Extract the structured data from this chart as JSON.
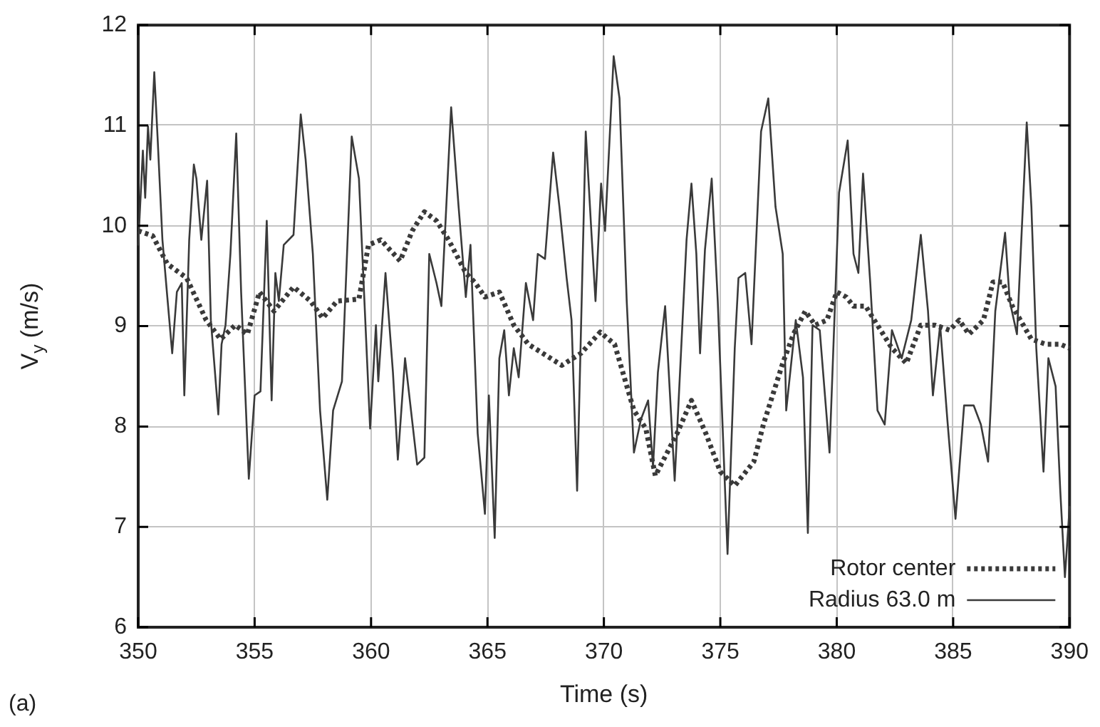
{
  "chart_data": {
    "type": "line",
    "xlabel": "Time (s)",
    "ylabel": "V$_{y}$ (m/s)",
    "xlim": [
      350,
      390
    ],
    "xticks": [
      350,
      355,
      360,
      365,
      370,
      375,
      380,
      385,
      390
    ],
    "ylim": [
      6,
      12
    ],
    "yticks": [
      6,
      7,
      8,
      9,
      10,
      11,
      12
    ],
    "grid": true,
    "legend": "bottom right",
    "marker": "none",
    "annotations": [
      "(a)"
    ],
    "series": [
      {
        "name": "Rotor center",
        "color": "#3a3a3a",
        "line_style": "dotted",
        "x": [
          350.0,
          350.62,
          351.25,
          352.08,
          352.92,
          353.54,
          354.17,
          354.69,
          355.21,
          355.83,
          356.67,
          357.4,
          357.92,
          358.54,
          359.48,
          359.89,
          360.42,
          361.25,
          361.77,
          362.29,
          362.81,
          363.33,
          364.07,
          364.48,
          364.89,
          365.51,
          366.13,
          366.75,
          367.37,
          368.19,
          369.02,
          369.84,
          370.46,
          371.29,
          371.8,
          372.21,
          372.52,
          373.14,
          373.76,
          374.38,
          375.0,
          375.62,
          376.44,
          376.85,
          377.68,
          378.14,
          378.65,
          379.07,
          379.58,
          380.0,
          380.41,
          380.72,
          381.24,
          381.75,
          382.37,
          382.99,
          383.61,
          384.23,
          384.85,
          385.26,
          385.68,
          386.3,
          386.71,
          387.12,
          387.54,
          388.36,
          388.98,
          389.6,
          390.0
        ],
        "values": [
          9.95,
          9.9,
          9.62,
          9.48,
          9.06,
          8.87,
          9.01,
          8.92,
          9.34,
          9.15,
          9.39,
          9.25,
          9.08,
          9.25,
          9.27,
          9.81,
          9.86,
          9.65,
          9.95,
          10.14,
          10.05,
          9.86,
          9.53,
          9.43,
          9.29,
          9.34,
          9.01,
          8.82,
          8.73,
          8.61,
          8.73,
          8.94,
          8.82,
          8.16,
          7.98,
          7.51,
          7.65,
          7.93,
          8.26,
          7.93,
          7.55,
          7.41,
          7.65,
          8.02,
          8.63,
          8.92,
          9.15,
          9.01,
          9.06,
          9.34,
          9.29,
          9.2,
          9.2,
          9.01,
          8.78,
          8.63,
          9.01,
          9.01,
          8.96,
          9.06,
          8.92,
          9.06,
          9.44,
          9.44,
          9.2,
          8.87,
          8.82,
          8.82,
          8.78
        ]
      },
      {
        "name": "Radius 63.0 m",
        "color": "#3a3a3a",
        "line_style": "solid",
        "x": [
          350.0,
          350.2,
          350.3,
          350.42,
          350.52,
          350.69,
          350.83,
          351.04,
          351.25,
          351.46,
          351.66,
          351.87,
          351.98,
          352.19,
          352.39,
          352.5,
          352.71,
          352.96,
          353.12,
          353.44,
          353.58,
          353.75,
          353.96,
          354.21,
          354.42,
          354.75,
          355.0,
          355.25,
          355.52,
          355.73,
          355.89,
          356.04,
          356.25,
          356.67,
          356.98,
          357.19,
          357.5,
          357.81,
          358.12,
          358.37,
          358.75,
          359.17,
          359.48,
          359.96,
          360.21,
          360.31,
          360.62,
          360.94,
          361.15,
          361.46,
          361.98,
          362.29,
          362.5,
          362.81,
          363.02,
          363.44,
          363.76,
          364.07,
          364.27,
          364.58,
          364.89,
          365.06,
          365.31,
          365.51,
          365.72,
          365.92,
          366.13,
          366.34,
          366.65,
          366.96,
          367.16,
          367.47,
          367.82,
          368.09,
          368.4,
          368.61,
          368.85,
          369.22,
          369.47,
          369.64,
          369.88,
          370.05,
          370.42,
          370.67,
          370.98,
          371.29,
          371.59,
          371.9,
          372.11,
          372.32,
          372.63,
          373.04,
          373.55,
          373.76,
          373.97,
          374.13,
          374.34,
          374.63,
          374.89,
          375.31,
          375.62,
          375.78,
          376.07,
          376.34,
          376.75,
          377.06,
          377.37,
          377.68,
          377.83,
          378.24,
          378.55,
          378.76,
          378.96,
          379.27,
          379.69,
          380.1,
          380.47,
          380.72,
          380.93,
          381.13,
          381.44,
          381.75,
          382.06,
          382.37,
          382.79,
          383.2,
          383.61,
          383.92,
          384.13,
          384.44,
          384.75,
          385.1,
          385.47,
          385.88,
          386.19,
          386.5,
          386.81,
          387.23,
          387.43,
          387.74,
          388.16,
          388.36,
          388.57,
          388.88,
          389.09,
          389.4,
          389.6,
          389.8,
          390.0
        ],
        "values": [
          9.81,
          10.75,
          10.28,
          10.99,
          10.66,
          11.53,
          10.89,
          9.86,
          9.29,
          8.73,
          9.34,
          9.43,
          8.31,
          9.86,
          10.61,
          10.47,
          9.86,
          10.45,
          9.06,
          8.12,
          8.82,
          9.01,
          9.72,
          10.92,
          9.34,
          7.48,
          8.31,
          8.35,
          10.05,
          8.26,
          9.53,
          9.25,
          9.81,
          9.91,
          11.11,
          10.66,
          9.72,
          8.16,
          7.27,
          8.16,
          8.45,
          10.89,
          10.47,
          7.98,
          9.01,
          8.45,
          9.53,
          8.54,
          7.67,
          8.68,
          7.62,
          7.69,
          9.72,
          9.43,
          9.2,
          11.18,
          10.19,
          9.29,
          9.81,
          7.93,
          7.13,
          8.31,
          6.89,
          8.68,
          8.96,
          8.31,
          8.78,
          8.49,
          9.43,
          9.06,
          9.72,
          9.67,
          10.73,
          10.19,
          9.48,
          9.06,
          7.36,
          10.94,
          9.91,
          9.25,
          10.42,
          9.95,
          11.69,
          11.27,
          9.25,
          7.74,
          8.07,
          8.26,
          7.6,
          8.54,
          9.2,
          7.46,
          9.86,
          10.42,
          9.72,
          8.73,
          9.76,
          10.47,
          9.25,
          6.73,
          8.78,
          9.48,
          9.53,
          8.82,
          10.94,
          11.27,
          10.19,
          9.72,
          8.16,
          9.06,
          8.49,
          6.94,
          9.01,
          8.96,
          7.74,
          10.33,
          10.85,
          9.72,
          9.53,
          10.52,
          9.43,
          8.16,
          8.02,
          8.96,
          8.68,
          9.06,
          9.91,
          9.15,
          8.31,
          9.01,
          8.07,
          7.08,
          8.21,
          8.21,
          8.02,
          7.65,
          9.15,
          9.93,
          9.25,
          8.92,
          11.03,
          10.19,
          8.78,
          7.55,
          8.68,
          8.4,
          7.36,
          6.5,
          7.2
        ]
      }
    ]
  }
}
